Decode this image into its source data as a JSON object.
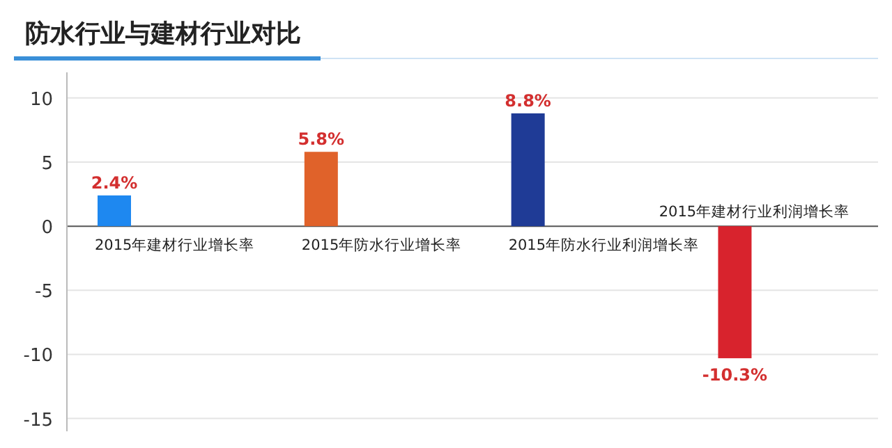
{
  "chart_data": {
    "type": "bar",
    "title": "防水行业与建材行业对比",
    "categories": [
      "2015年建材行业增长率",
      "2015年防水行业增长率",
      "2015年防水行业利润增长率",
      "2015年建材行业利润增长率"
    ],
    "values": [
      2.4,
      5.8,
      8.8,
      -10.3
    ],
    "value_labels": [
      "2.4%",
      "5.8%",
      "8.8%",
      "-10.3%"
    ],
    "colors": [
      "#1e88f0",
      "#e0622a",
      "#1f3b96",
      "#d8232d"
    ],
    "ylim": [
      -16,
      12
    ],
    "yticks": [
      -15,
      -10,
      -5,
      0,
      5,
      10
    ],
    "grid": "y"
  }
}
